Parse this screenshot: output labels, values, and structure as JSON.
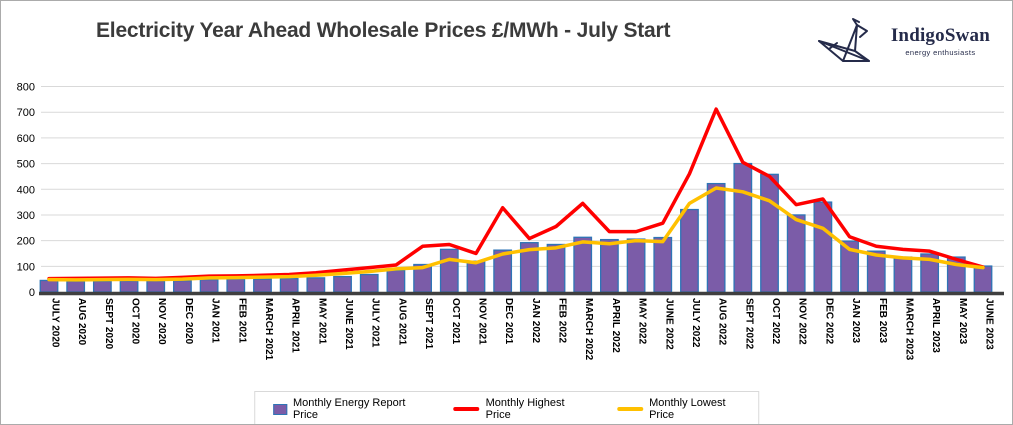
{
  "header": {
    "title": "Electricity Year Ahead Wholesale Prices £/MWh - July Start",
    "logo": {
      "name": "IndigoSwan",
      "tagline": "energy enthusiasts"
    }
  },
  "legend": {
    "items": [
      {
        "label": "Monthly Energy Report Price",
        "marker": "bar",
        "color": "#7b5ca8",
        "border": "#2e75b6"
      },
      {
        "label": "Monthly Highest Price",
        "marker": "line",
        "color": "#ff0000"
      },
      {
        "label": "Monthly Lowest Price",
        "marker": "line",
        "color": "#ffc000"
      }
    ]
  },
  "colors": {
    "bar_fill": "#7b5ca8",
    "bar_border": "#2e75b6",
    "highest_line": "#ff0000",
    "lowest_line": "#ffc000",
    "gridline": "#d9d9d9",
    "axis_line": "#3f3f3f",
    "title_text": "#3b3b3b",
    "logo_navy": "#252b4a"
  },
  "chart_data": {
    "type": "bar",
    "title": "Electricity Year Ahead Wholesale Prices £/MWh - July Start",
    "xlabel": "",
    "ylabel": "",
    "ylim": [
      0,
      800
    ],
    "y_ticks": [
      0,
      100,
      200,
      300,
      400,
      500,
      600,
      700,
      800
    ],
    "grid": true,
    "legend_position": "bottom",
    "categories": [
      "JULY 2020",
      "AUG 2020",
      "SEPT 2020",
      "OCT 2020",
      "NOV 2020",
      "DEC 2020",
      "JAN 2021",
      "FEB 2021",
      "MARCH 2021",
      "APRIL 2021",
      "MAY 2021",
      "JUNE 2021",
      "JULY 2021",
      "AUG 2021",
      "SEPT 2021",
      "OCT 2021",
      "NOV 2021",
      "DEC 2021",
      "JAN 2022",
      "FEB 2022",
      "MARCH 2022",
      "APRIL 2022",
      "MAY 2022",
      "JUNE 2022",
      "JULY 2022",
      "AUG 2022",
      "SEPT 2022",
      "OCT 2022",
      "NOV 2022",
      "DEC 2022",
      "JAN 2023",
      "FEB 2023",
      "MARCH 2023",
      "APRIL 2023",
      "MAY 2023",
      "JUNE 2023"
    ],
    "series": [
      {
        "name": "Monthly Energy Report Price",
        "type": "bar",
        "color": "#7b5ca8",
        "border_color": "#2e75b6",
        "values": [
          45,
          42,
          42,
          43,
          43,
          44,
          48,
          50,
          50,
          52,
          55,
          60,
          68,
          84,
          107,
          166,
          120,
          163,
          192,
          185,
          213,
          204,
          206,
          212,
          321,
          422,
          500,
          458,
          300,
          350,
          198,
          159,
          136,
          148,
          136,
          101
        ]
      },
      {
        "name": "Monthly Highest Price",
        "type": "line",
        "color": "#ff0000",
        "values": [
          52,
          53,
          54,
          55,
          53,
          57,
          62,
          63,
          65,
          68,
          75,
          85,
          95,
          105,
          178,
          185,
          150,
          328,
          208,
          255,
          345,
          235,
          235,
          268,
          460,
          712,
          505,
          450,
          340,
          362,
          215,
          178,
          166,
          159,
          127,
          97
        ]
      },
      {
        "name": "Monthly Lowest Price",
        "type": "line",
        "color": "#ffc000",
        "values": [
          48,
          47,
          48,
          49,
          48,
          50,
          55,
          56,
          58,
          60,
          65,
          72,
          80,
          90,
          95,
          127,
          114,
          148,
          165,
          172,
          195,
          188,
          200,
          196,
          345,
          405,
          390,
          355,
          282,
          248,
          166,
          144,
          133,
          127,
          107,
          95
        ]
      }
    ]
  }
}
